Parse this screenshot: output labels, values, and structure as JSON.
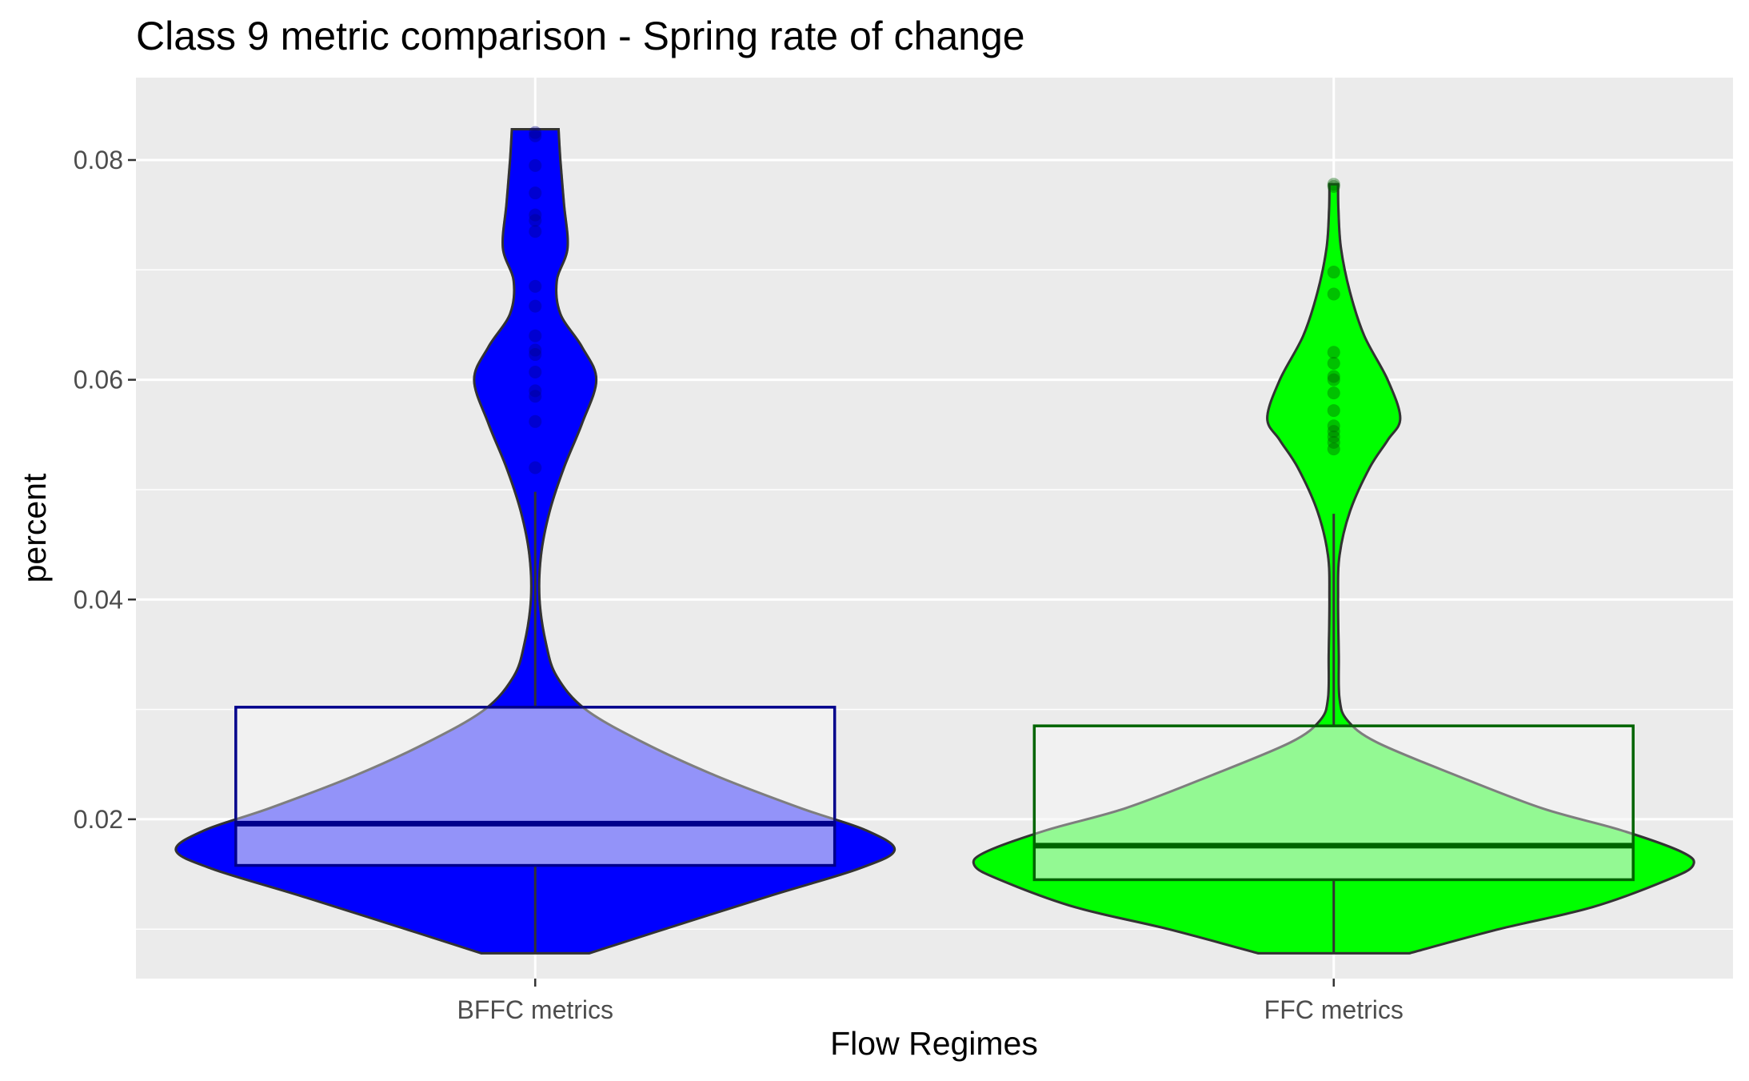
{
  "chart_data": {
    "type": "violin",
    "title": "Class 9 metric comparison - Spring rate of change",
    "xlabel": "Flow Regimes",
    "ylabel": "percent",
    "categories": [
      "BFFC metrics",
      "FFC metrics"
    ],
    "ylim": [
      0.0055,
      0.0875
    ],
    "yticks": [
      0.02,
      0.04,
      0.06,
      0.08
    ],
    "ytick_labels": [
      "0.02",
      "0.04",
      "0.06",
      "0.08"
    ],
    "grid": true,
    "background": "#EBEBEB",
    "series": [
      {
        "category": "BFFC metrics",
        "fill": "#0000FF",
        "box_fill": "#F5F5F5",
        "box_border": "#00008B",
        "median_color": "#00008B",
        "point_color": "#00008B",
        "box": {
          "q1": 0.0158,
          "median": 0.0196,
          "q3": 0.0302,
          "whisker_low": 0.0078,
          "whisker_high": 0.0498
        },
        "points": [
          0.0825,
          0.0822,
          0.0795,
          0.077,
          0.075,
          0.0745,
          0.0735,
          0.0685,
          0.0667,
          0.064,
          0.0627,
          0.0623,
          0.0607,
          0.059,
          0.0585,
          0.0562,
          0.052
        ],
        "violin": [
          [
            0.0078,
            0.15
          ],
          [
            0.01,
            0.36
          ],
          [
            0.013,
            0.65
          ],
          [
            0.0155,
            0.9
          ],
          [
            0.0172,
            1.0
          ],
          [
            0.019,
            0.92
          ],
          [
            0.021,
            0.74
          ],
          [
            0.024,
            0.5
          ],
          [
            0.027,
            0.3
          ],
          [
            0.03,
            0.14
          ],
          [
            0.033,
            0.06
          ],
          [
            0.036,
            0.03
          ],
          [
            0.04,
            0.012
          ],
          [
            0.044,
            0.016
          ],
          [
            0.048,
            0.04
          ],
          [
            0.052,
            0.08
          ],
          [
            0.056,
            0.13
          ],
          [
            0.06,
            0.17
          ],
          [
            0.063,
            0.13
          ],
          [
            0.066,
            0.07
          ],
          [
            0.069,
            0.06
          ],
          [
            0.072,
            0.09
          ],
          [
            0.076,
            0.08
          ],
          [
            0.08,
            0.07
          ],
          [
            0.0828,
            0.065
          ]
        ]
      },
      {
        "category": "FFC metrics",
        "fill": "#00FF00",
        "box_fill": "#F5F5F5",
        "box_border": "#006400",
        "median_color": "#006400",
        "point_color": "#006400",
        "box": {
          "q1": 0.0145,
          "median": 0.0176,
          "q3": 0.0285,
          "whisker_low": 0.0078,
          "whisker_high": 0.0478
        },
        "points": [
          0.0778,
          0.0776,
          0.0698,
          0.0678,
          0.0625,
          0.0615,
          0.0603,
          0.06,
          0.0588,
          0.0572,
          0.0558,
          0.0553,
          0.0548,
          0.0543,
          0.0537
        ],
        "violin": [
          [
            0.0078,
            0.21
          ],
          [
            0.01,
            0.46
          ],
          [
            0.012,
            0.72
          ],
          [
            0.0145,
            0.93
          ],
          [
            0.0158,
            1.0
          ],
          [
            0.017,
            0.97
          ],
          [
            0.019,
            0.8
          ],
          [
            0.021,
            0.58
          ],
          [
            0.024,
            0.34
          ],
          [
            0.027,
            0.12
          ],
          [
            0.029,
            0.038
          ],
          [
            0.031,
            0.016
          ],
          [
            0.035,
            0.014
          ],
          [
            0.04,
            0.012
          ],
          [
            0.044,
            0.016
          ],
          [
            0.048,
            0.045
          ],
          [
            0.052,
            0.1
          ],
          [
            0.0545,
            0.15
          ],
          [
            0.0565,
            0.185
          ],
          [
            0.06,
            0.15
          ],
          [
            0.064,
            0.085
          ],
          [
            0.068,
            0.045
          ],
          [
            0.072,
            0.02
          ],
          [
            0.0755,
            0.013
          ],
          [
            0.0778,
            0.012
          ]
        ]
      }
    ]
  }
}
